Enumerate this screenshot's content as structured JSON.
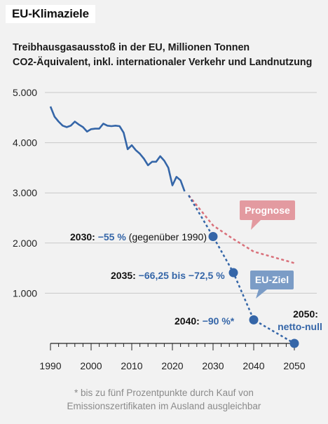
{
  "header": {
    "title": "EU-Klimaziele",
    "subtitle_line1": "Treibhausgasausstoß in der EU, Millionen Tonnen",
    "subtitle_line2": "CO2-Äquivalent, inkl. internationaler Verkehr und Landnutzung"
  },
  "chart_data": {
    "type": "line",
    "title": "EU-Klimaziele",
    "subtitle": "Treibhausgasausstoß in der EU, Millionen Tonnen CO2-Äquivalent, inkl. internationaler Verkehr und Landnutzung",
    "xlim": [
      1990,
      2050
    ],
    "ylim": [
      0,
      5000
    ],
    "x_ticks": [
      1990,
      2000,
      2010,
      2020,
      2030,
      2040,
      2050
    ],
    "x_tick_labels": [
      "1990",
      "2000",
      "2010",
      "2020",
      "2030",
      "2040",
      "2050"
    ],
    "y_ticks": [
      1000,
      2000,
      3000,
      4000,
      5000
    ],
    "y_tick_labels": [
      "1.000",
      "2.000",
      "3.000",
      "4.000",
      "5.000"
    ],
    "grid": "horizontal",
    "colors": {
      "historical": "#3566a8",
      "target": "#3566a8",
      "forecast": "#d9707a",
      "axis": "#222222",
      "grid": "#c8c8c8"
    },
    "series": [
      {
        "x": [
          1990,
          1991,
          1992,
          1993,
          1994,
          1995,
          1996,
          1997,
          1998,
          1999,
          2000,
          2001,
          2002,
          2003,
          2004,
          2005,
          2006,
          2007,
          2008,
          2009,
          2010,
          2011,
          2012,
          2013,
          2014,
          2015,
          2016,
          2017,
          2018,
          2019,
          2020,
          2021,
          2022,
          2023
        ],
        "y": [
          4720,
          4520,
          4420,
          4340,
          4310,
          4340,
          4420,
          4360,
          4310,
          4220,
          4270,
          4280,
          4280,
          4380,
          4340,
          4330,
          4340,
          4330,
          4200,
          3870,
          3950,
          3850,
          3780,
          3680,
          3550,
          3620,
          3620,
          3730,
          3640,
          3500,
          3150,
          3320,
          3250,
          3030
        ]
      },
      {
        "x": [
          2024,
          2030,
          2035,
          2040,
          2050
        ],
        "y": [
          2950,
          2350,
          2080,
          1830,
          1600
        ]
      },
      {
        "x": [
          2024,
          2030,
          2035,
          2040,
          2050
        ],
        "y": [
          2950,
          2130,
          1410,
          470,
          0
        ]
      }
    ],
    "target_points": [
      {
        "x": 2030,
        "y": 2130,
        "year_label": "2030:",
        "value_label": "−55 %",
        "note": "(gegenüber 1990)"
      },
      {
        "x": 2035,
        "y": 1410,
        "year_label": "2035:",
        "value_label": "−66,25 bis −72,5 %",
        "note": ""
      },
      {
        "x": 2040,
        "y": 470,
        "year_label": "2040:",
        "value_label": "−90 %*",
        "note": ""
      },
      {
        "x": 2050,
        "y": 0,
        "year_label": "2050:",
        "value_label": "netto-null",
        "note": ""
      }
    ],
    "callouts": {
      "forecast": "Prognose",
      "target": "EU-Ziel"
    }
  },
  "footnote": {
    "line1": "* bis zu fünf Prozentpunkte durch Kauf von",
    "line2": "Emissionszertifikaten im Ausland ausgleichbar"
  }
}
